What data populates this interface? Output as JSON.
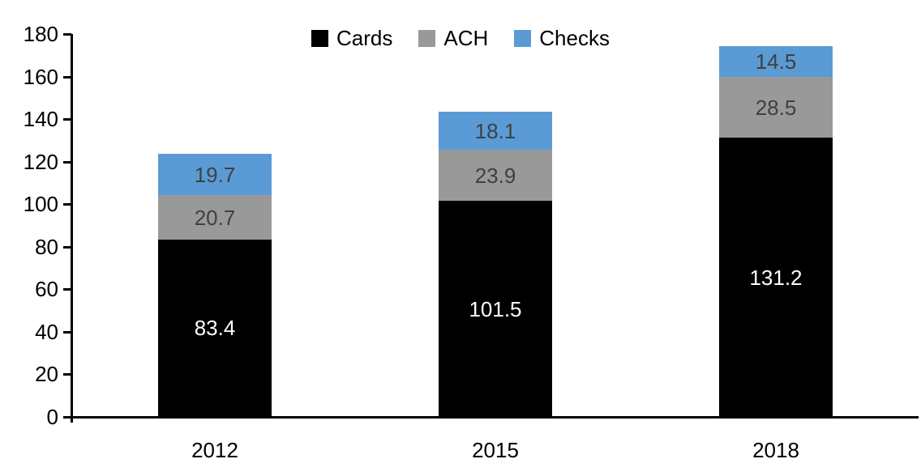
{
  "chart_data": {
    "type": "bar",
    "stacked": true,
    "title": "",
    "xlabel": "",
    "ylabel": "",
    "categories": [
      "2012",
      "2015",
      "2018"
    ],
    "series": [
      {
        "name": "Cards",
        "color": "#000000",
        "label_color": "#ffffff",
        "values": [
          83.4,
          101.5,
          131.2
        ]
      },
      {
        "name": "ACH",
        "color": "#999999",
        "label_color": "#404040",
        "values": [
          20.7,
          23.9,
          28.5
        ]
      },
      {
        "name": "Checks",
        "color": "#5B9BD5",
        "label_color": "#404040",
        "values": [
          19.7,
          18.1,
          14.5
        ]
      }
    ],
    "stack_totals": [
      123.8,
      143.5,
      174.2
    ],
    "ylim": [
      0,
      180
    ],
    "yticks": [
      0,
      20,
      40,
      60,
      80,
      100,
      120,
      140,
      160,
      180
    ],
    "grid": false,
    "legend_position": "top-center",
    "axis_color": "#000000",
    "background_color": "#ffffff",
    "value_labels_shown": true
  }
}
